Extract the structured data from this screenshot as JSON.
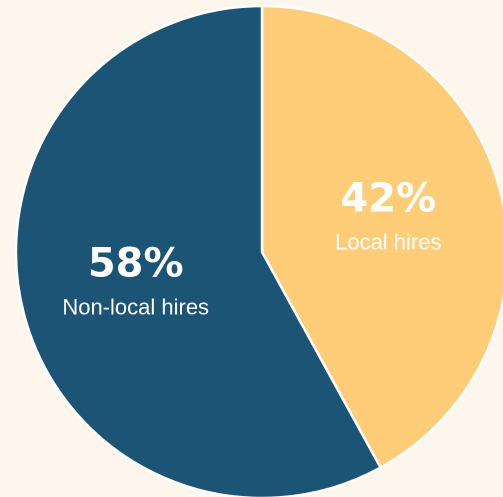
{
  "chart_data": {
    "type": "pie",
    "slices": [
      {
        "label": "Local hires",
        "value": 42,
        "percent_label": "42%",
        "color": "#ffcc78",
        "text_color": "#ffffff"
      },
      {
        "label": "Non-local hires",
        "value": 58,
        "percent_label": "58%",
        "color": "#1b5475",
        "text_color": "#ffffff"
      }
    ],
    "start": "12 o'clock",
    "direction": "clockwise",
    "border_color": "#ffffff",
    "background_color": "#fdf6ec",
    "labels_inside": true,
    "legend": "none"
  }
}
